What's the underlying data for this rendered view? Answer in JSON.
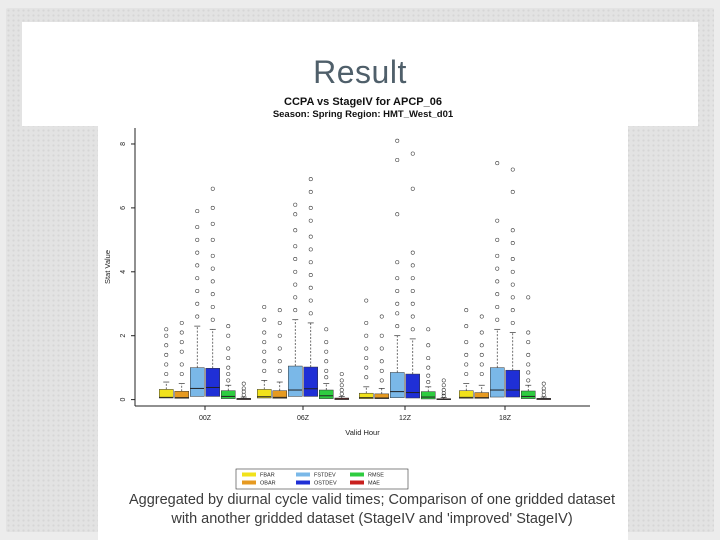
{
  "slide": {
    "title": "Result",
    "caption_line1": "Aggregated by diurnal cycle valid times; Comparison of one gridded dataset",
    "caption_line2": "with another gridded dataset (StageIV and 'improved' StageIV)"
  },
  "chart_data": {
    "type": "box",
    "title": "CCPA vs StageIV for APCP_06",
    "subtitle": "Season: Spring  Region: HMT_West_d01",
    "xlabel": "Valid Hour",
    "ylabel": "Stat Value",
    "categories": [
      "00Z",
      "06Z",
      "12Z",
      "18Z"
    ],
    "ylim": [
      -0.2,
      8.5
    ],
    "yticks": [
      0,
      2,
      4,
      6,
      8
    ],
    "grid": false,
    "legend_position": "bottom",
    "series": [
      {
        "name": "FBAR",
        "color": "#f1e21b",
        "boxes": [
          {
            "q1": 0.05,
            "median": 0.07,
            "q3": 0.32,
            "whisker_high": 0.55,
            "outliers": [
              0.8,
              1.1,
              1.4,
              1.7,
              2.0,
              2.2
            ]
          },
          {
            "q1": 0.05,
            "median": 0.09,
            "q3": 0.32,
            "whisker_high": 0.6,
            "outliers": [
              0.9,
              1.2,
              1.5,
              1.8,
              2.1,
              2.5,
              2.9
            ]
          },
          {
            "q1": 0.03,
            "median": 0.06,
            "q3": 0.2,
            "whisker_high": 0.4,
            "outliers": [
              0.7,
              1.0,
              1.3,
              1.6,
              2.0,
              2.4,
              3.1
            ]
          },
          {
            "q1": 0.04,
            "median": 0.07,
            "q3": 0.28,
            "whisker_high": 0.5,
            "outliers": [
              0.8,
              1.1,
              1.4,
              1.8,
              2.3,
              2.8
            ]
          }
        ]
      },
      {
        "name": "OBAR",
        "color": "#e69a21",
        "boxes": [
          {
            "q1": 0.04,
            "median": 0.06,
            "q3": 0.26,
            "whisker_high": 0.5,
            "outliers": [
              0.8,
              1.1,
              1.5,
              1.8,
              2.1,
              2.4
            ]
          },
          {
            "q1": 0.04,
            "median": 0.07,
            "q3": 0.28,
            "whisker_high": 0.55,
            "outliers": [
              0.9,
              1.2,
              1.6,
              2.0,
              2.4,
              2.8
            ]
          },
          {
            "q1": 0.03,
            "median": 0.05,
            "q3": 0.18,
            "whisker_high": 0.35,
            "outliers": [
              0.6,
              0.9,
              1.2,
              1.6,
              2.0,
              2.6
            ]
          },
          {
            "q1": 0.04,
            "median": 0.06,
            "q3": 0.22,
            "whisker_high": 0.45,
            "outliers": [
              0.8,
              1.1,
              1.4,
              1.7,
              2.1,
              2.6
            ]
          }
        ]
      },
      {
        "name": "FSTDEV",
        "color": "#7ab8e8",
        "boxes": [
          {
            "q1": 0.1,
            "median": 0.35,
            "q3": 1.0,
            "whisker_high": 2.3,
            "outliers": [
              2.6,
              3.0,
              3.4,
              3.8,
              4.2,
              4.6,
              5.0,
              5.4,
              5.9
            ]
          },
          {
            "q1": 0.1,
            "median": 0.3,
            "q3": 1.05,
            "whisker_high": 2.5,
            "outliers": [
              2.8,
              3.2,
              3.6,
              4.0,
              4.4,
              4.8,
              5.3,
              5.8,
              6.1
            ]
          },
          {
            "q1": 0.06,
            "median": 0.25,
            "q3": 0.85,
            "whisker_high": 2.0,
            "outliers": [
              2.3,
              2.7,
              3.0,
              3.4,
              3.8,
              4.3,
              5.8,
              7.5,
              8.1
            ]
          },
          {
            "q1": 0.08,
            "median": 0.3,
            "q3": 1.0,
            "whisker_high": 2.2,
            "outliers": [
              2.5,
              2.9,
              3.3,
              3.7,
              4.1,
              4.5,
              5.0,
              5.6,
              7.4
            ]
          }
        ]
      },
      {
        "name": "OSTDEV",
        "color": "#1f2fd6",
        "boxes": [
          {
            "q1": 0.1,
            "median": 0.38,
            "q3": 0.98,
            "whisker_high": 2.2,
            "outliers": [
              2.5,
              2.9,
              3.3,
              3.7,
              4.1,
              4.5,
              5.0,
              5.5,
              6.0,
              6.6
            ]
          },
          {
            "q1": 0.1,
            "median": 0.34,
            "q3": 1.02,
            "whisker_high": 2.4,
            "outliers": [
              2.7,
              3.1,
              3.5,
              3.9,
              4.3,
              4.7,
              5.1,
              5.6,
              6.0,
              6.5,
              6.9
            ]
          },
          {
            "q1": 0.05,
            "median": 0.22,
            "q3": 0.8,
            "whisker_high": 1.9,
            "outliers": [
              2.2,
              2.6,
              3.0,
              3.4,
              3.8,
              4.2,
              4.6,
              6.6,
              7.7
            ]
          },
          {
            "q1": 0.08,
            "median": 0.3,
            "q3": 0.92,
            "whisker_high": 2.1,
            "outliers": [
              2.4,
              2.8,
              3.2,
              3.6,
              4.0,
              4.4,
              4.9,
              5.3,
              6.5,
              7.2
            ]
          }
        ]
      },
      {
        "name": "RMSE",
        "color": "#2ecc40",
        "boxes": [
          {
            "q1": 0.03,
            "median": 0.1,
            "q3": 0.28,
            "whisker_high": 0.45,
            "outliers": [
              0.6,
              0.8,
              1.0,
              1.3,
              1.6,
              2.0,
              2.3
            ]
          },
          {
            "q1": 0.03,
            "median": 0.12,
            "q3": 0.3,
            "whisker_high": 0.5,
            "outliers": [
              0.7,
              0.9,
              1.2,
              1.5,
              1.8,
              2.2
            ]
          },
          {
            "q1": 0.02,
            "median": 0.08,
            "q3": 0.25,
            "whisker_high": 0.4,
            "outliers": [
              0.55,
              0.75,
              1.0,
              1.3,
              1.7,
              2.2
            ]
          },
          {
            "q1": 0.03,
            "median": 0.1,
            "q3": 0.27,
            "whisker_high": 0.45,
            "outliers": [
              0.6,
              0.85,
              1.1,
              1.4,
              1.8,
              2.1,
              3.2
            ]
          }
        ]
      },
      {
        "name": "MAE",
        "color": "#c8201e",
        "boxes": [
          {
            "q1": 0.0,
            "median": 0.02,
            "q3": 0.04,
            "whisker_high": 0.08,
            "outliers": [
              0.15,
              0.25,
              0.35,
              0.5
            ]
          },
          {
            "q1": 0.0,
            "median": 0.02,
            "q3": 0.05,
            "whisker_high": 0.1,
            "outliers": [
              0.18,
              0.3,
              0.45,
              0.6,
              0.8
            ]
          },
          {
            "q1": 0.0,
            "median": 0.01,
            "q3": 0.03,
            "whisker_high": 0.06,
            "outliers": [
              0.12,
              0.2,
              0.3,
              0.45,
              0.6
            ]
          },
          {
            "q1": 0.0,
            "median": 0.02,
            "q3": 0.04,
            "whisker_high": 0.08,
            "outliers": [
              0.15,
              0.25,
              0.35,
              0.5
            ]
          }
        ]
      }
    ]
  }
}
